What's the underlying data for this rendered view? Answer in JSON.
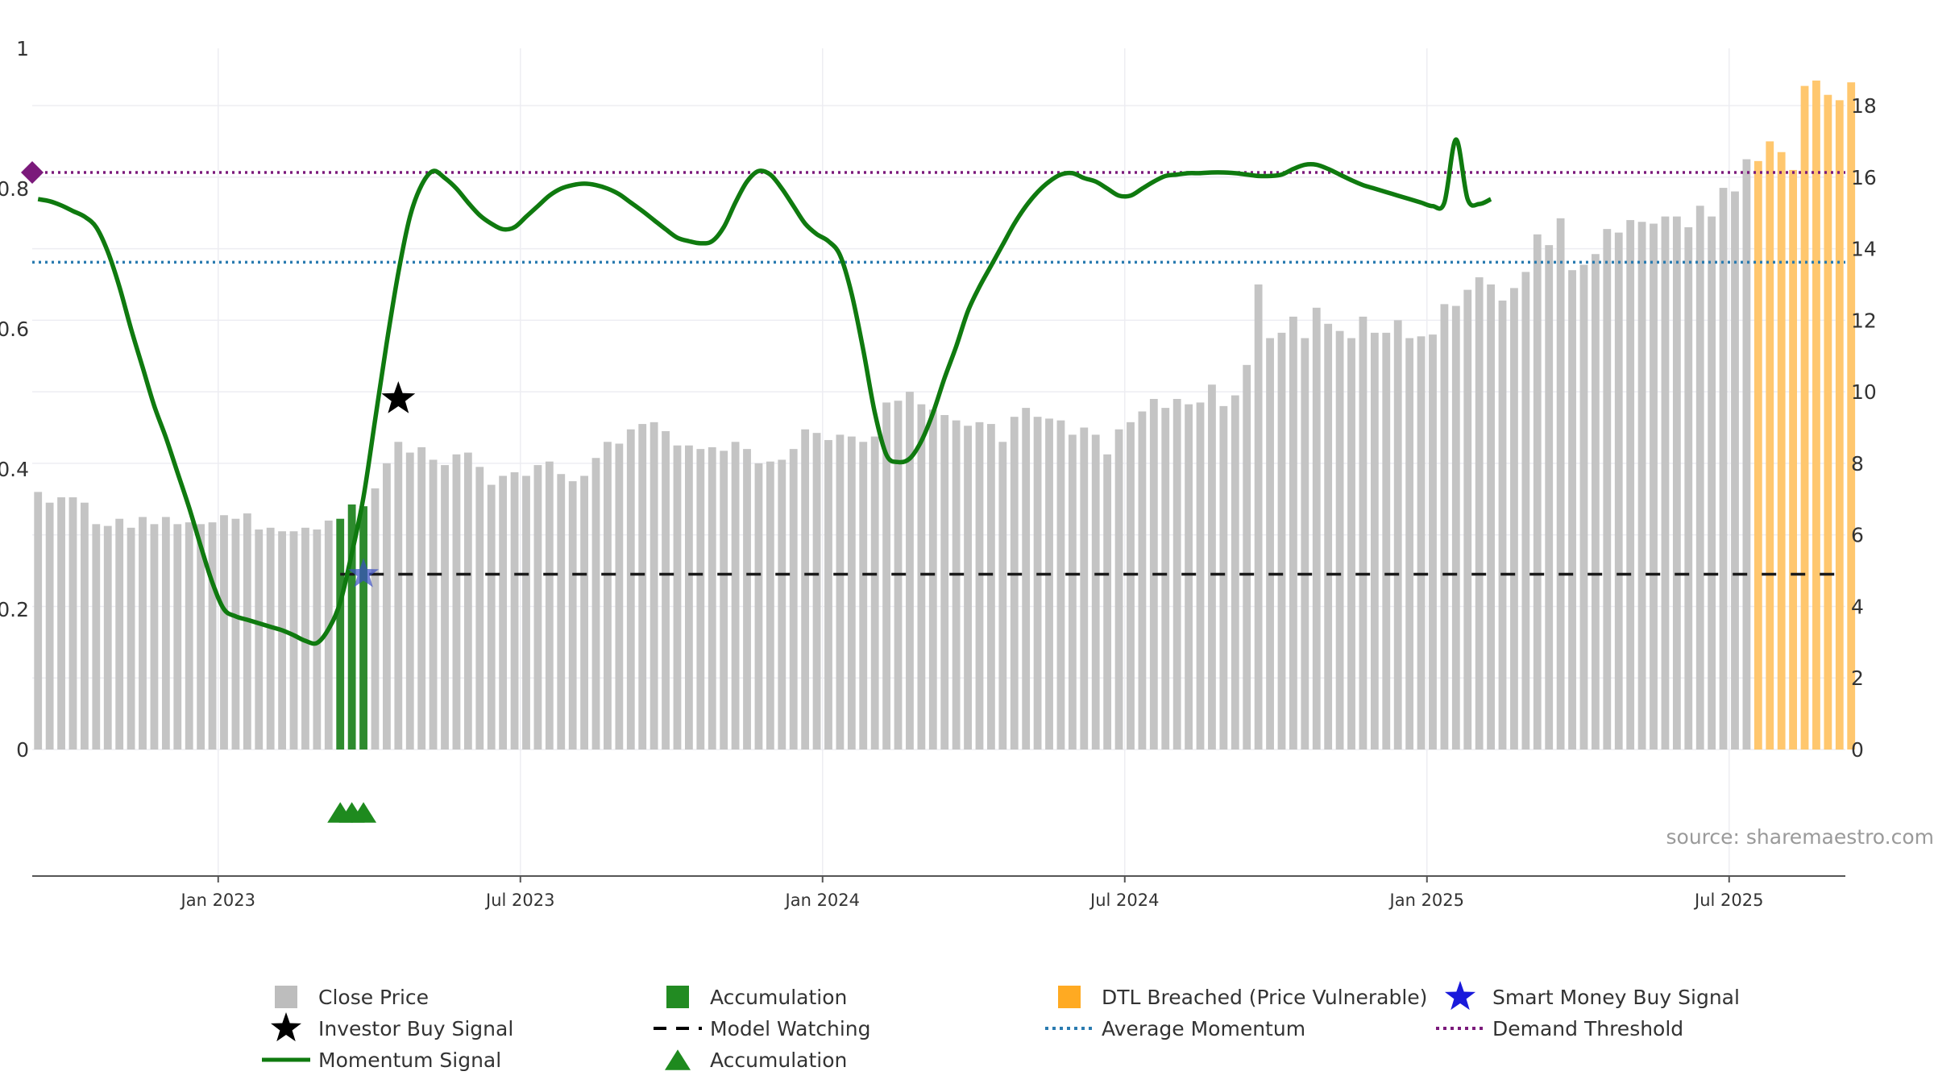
{
  "chart_data": {
    "type": "bar",
    "source": "source: sharemaestro.com",
    "left_axis": {
      "range": [
        0,
        1
      ],
      "ticks": [
        "0",
        "0.2",
        "0.4",
        "0.6",
        "0.8",
        "1"
      ]
    },
    "right_axis": {
      "range": [
        0,
        19.6
      ],
      "ticks": [
        "0",
        "2",
        "4",
        "6",
        "8",
        "10",
        "12",
        "14",
        "16",
        "18"
      ]
    },
    "x_axis": {
      "ticks": [
        "Jan 2023",
        "Jul 2023",
        "Jan 2024",
        "Jul 2024",
        "Jan 2025",
        "Jul 2025"
      ]
    },
    "weeks": 156,
    "tick_weeks": [
      15.5,
      41.5,
      67.5,
      93.5,
      119.5,
      145.5
    ],
    "accumulation_weeks": [
      26,
      27,
      28
    ],
    "dtl_start_week": 148,
    "close_price": [
      7.2,
      6.9,
      7.05,
      7.05,
      6.9,
      6.3,
      6.25,
      6.45,
      6.2,
      6.5,
      6.3,
      6.5,
      6.3,
      6.35,
      6.3,
      6.35,
      6.55,
      6.45,
      6.6,
      6.15,
      6.2,
      6.1,
      6.1,
      6.2,
      6.15,
      6.4,
      6.45,
      6.85,
      6.8,
      7.3,
      8.0,
      8.6,
      8.3,
      8.45,
      8.1,
      7.95,
      8.25,
      8.3,
      7.9,
      7.4,
      7.65,
      7.75,
      7.65,
      7.95,
      8.05,
      7.7,
      7.5,
      7.65,
      8.15,
      8.6,
      8.55,
      8.95,
      9.1,
      9.15,
      8.9,
      8.5,
      8.5,
      8.4,
      8.45,
      8.35,
      8.6,
      8.4,
      8.0,
      8.05,
      8.1,
      8.4,
      8.95,
      8.85,
      8.65,
      8.8,
      8.75,
      8.6,
      8.75,
      9.7,
      9.75,
      10.0,
      9.65,
      9.5,
      9.35,
      9.2,
      9.05,
      9.15,
      9.1,
      8.6,
      9.3,
      9.55,
      9.3,
      9.25,
      9.2,
      8.8,
      9.0,
      8.8,
      8.25,
      8.95,
      9.15,
      9.45,
      9.8,
      9.55,
      9.8,
      9.65,
      9.7,
      10.2,
      9.6,
      9.9,
      10.75,
      13.0,
      11.5,
      11.65,
      12.1,
      11.5,
      12.35,
      11.9,
      11.7,
      11.5,
      12.1,
      11.65,
      11.65,
      12.0,
      11.5,
      11.55,
      11.6,
      12.45,
      12.4,
      12.85,
      13.2,
      13.0,
      12.55,
      12.9,
      13.35,
      14.4,
      14.1,
      14.85,
      13.4,
      13.55,
      13.85,
      14.55,
      14.45,
      14.8,
      14.75,
      14.7,
      14.9,
      14.9,
      14.6,
      15.2,
      14.9,
      15.7,
      15.6,
      16.5,
      16.45,
      17.0,
      16.7,
      16.2,
      18.55,
      18.7,
      18.3,
      18.15,
      18.65
    ],
    "momentum_signal": [
      0.785,
      0.782,
      0.776,
      0.768,
      0.76,
      0.745,
      0.71,
      0.66,
      0.6,
      0.545,
      0.49,
      0.445,
      0.395,
      0.345,
      0.29,
      0.238,
      0.2,
      0.19,
      0.185,
      0.18,
      0.175,
      0.17,
      0.163,
      0.155,
      0.152,
      0.172,
      0.21,
      0.28,
      0.36,
      0.47,
      0.58,
      0.68,
      0.76,
      0.805,
      0.825,
      0.815,
      0.8,
      0.78,
      0.762,
      0.75,
      0.742,
      0.745,
      0.76,
      0.775,
      0.79,
      0.8,
      0.805,
      0.807,
      0.805,
      0.8,
      0.792,
      0.78,
      0.768,
      0.755,
      0.742,
      0.73,
      0.725,
      0.722,
      0.725,
      0.745,
      0.78,
      0.81,
      0.825,
      0.82,
      0.8,
      0.775,
      0.75,
      0.735,
      0.725,
      0.705,
      0.65,
      0.57,
      0.48,
      0.42,
      0.41,
      0.415,
      0.44,
      0.48,
      0.53,
      0.575,
      0.625,
      0.66,
      0.69,
      0.72,
      0.75,
      0.775,
      0.795,
      0.81,
      0.82,
      0.822,
      0.815,
      0.81,
      0.8,
      0.79,
      0.79,
      0.8,
      0.81,
      0.818,
      0.82,
      0.822,
      0.822,
      0.823,
      0.823,
      0.822,
      0.82,
      0.818,
      0.818,
      0.82,
      0.828,
      0.834,
      0.834,
      0.828,
      0.82,
      0.812,
      0.805,
      0.8,
      0.795,
      0.79,
      0.785,
      0.78,
      0.775,
      0.78,
      0.87,
      0.785,
      0.778,
      0.785
    ],
    "investor_buy_signal": {
      "week": 31,
      "value": 0.5
    },
    "smart_money_buy_signal": {
      "week": 28,
      "value": 0.25
    },
    "model_watching_level": 0.25,
    "average_momentum": 0.695,
    "demand_threshold": 0.823,
    "legend": [
      {
        "label": "Close Price",
        "symbol": "square",
        "color": "#bdbdbd"
      },
      {
        "label": "Accumulation",
        "symbol": "square",
        "color": "#228b22"
      },
      {
        "label": "DTL Breached (Price Vulnerable)",
        "symbol": "square",
        "color": "#ffaa22"
      },
      {
        "label": "Smart Money Buy Signal",
        "symbol": "star",
        "color": "#1a1adb"
      },
      {
        "label": "Investor Buy Signal",
        "symbol": "star",
        "color": "#000000"
      },
      {
        "label": "Model Watching",
        "symbol": "dash",
        "color": "#000000"
      },
      {
        "label": "Average Momentum",
        "symbol": "dot",
        "color": "#2a7bb0"
      },
      {
        "label": "Demand Threshold",
        "symbol": "dot",
        "color": "#7b1a7b"
      },
      {
        "label": "Momentum Signal",
        "symbol": "line",
        "color": "#0f7a0f"
      },
      {
        "label": "Accumulation",
        "symbol": "triangle",
        "color": "#1e8a1e"
      }
    ],
    "colors": {
      "close_price": "#c4c4c4",
      "accumulation_bar": "#2e8b2e",
      "dtl_bar": "#ffc76e",
      "momentum": "#0f7a0f",
      "average_momentum": "#2a7bb0",
      "demand_threshold": "#7b1a7b",
      "model_watching": "#1a1a1a",
      "grid": "#ededf2",
      "axis": "#555555"
    }
  }
}
